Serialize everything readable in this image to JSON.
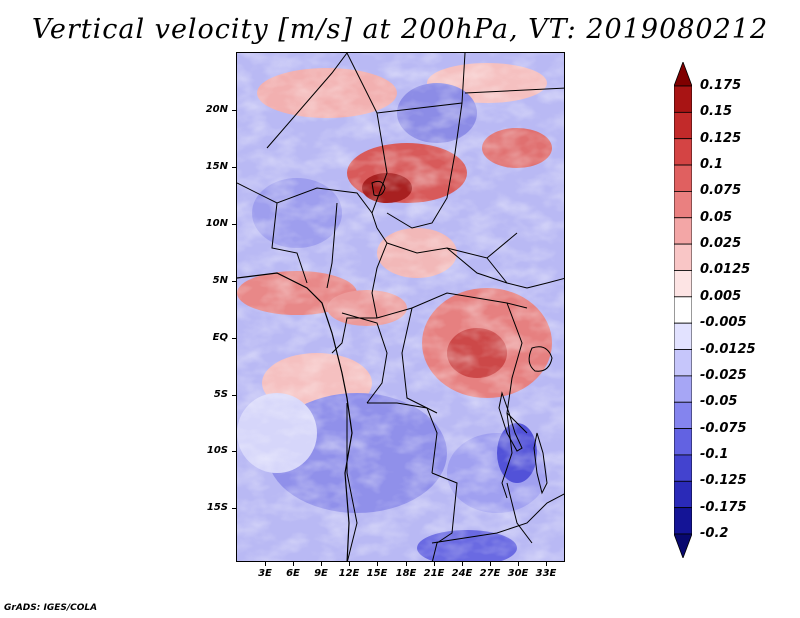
{
  "title": "Vertical velocity [m/s] at 200hPa, VT: 2019080212",
  "credit": "GrADS: IGES/COLA",
  "map": {
    "lat_labels": [
      "20N",
      "15N",
      "10N",
      "5N",
      "EQ",
      "5S",
      "10S",
      "15S"
    ],
    "lon_labels": [
      "3E",
      "6E",
      "9E",
      "12E",
      "15E",
      "18E",
      "21E",
      "24E",
      "27E",
      "30E",
      "33E"
    ]
  },
  "colorbar": {
    "labels": [
      "0.175",
      "0.15",
      "0.125",
      "0.1",
      "0.075",
      "0.05",
      "0.025",
      "0.0125",
      "0.005",
      "-0.005",
      "-0.0125",
      "-0.025",
      "-0.05",
      "-0.075",
      "-0.1",
      "-0.125",
      "-0.175",
      "-0.2"
    ],
    "colors": [
      "#7f0000",
      "#a81414",
      "#c22a2a",
      "#d44444",
      "#e06060",
      "#ea8080",
      "#f3a6a6",
      "#f9c6c6",
      "#fde4e4",
      "#ffffff",
      "#e2e2ff",
      "#c6c6fb",
      "#a6a6f5",
      "#8484ee",
      "#6262e2",
      "#4343cf",
      "#2a2ab8",
      "#141496",
      "#08086e"
    ]
  }
}
